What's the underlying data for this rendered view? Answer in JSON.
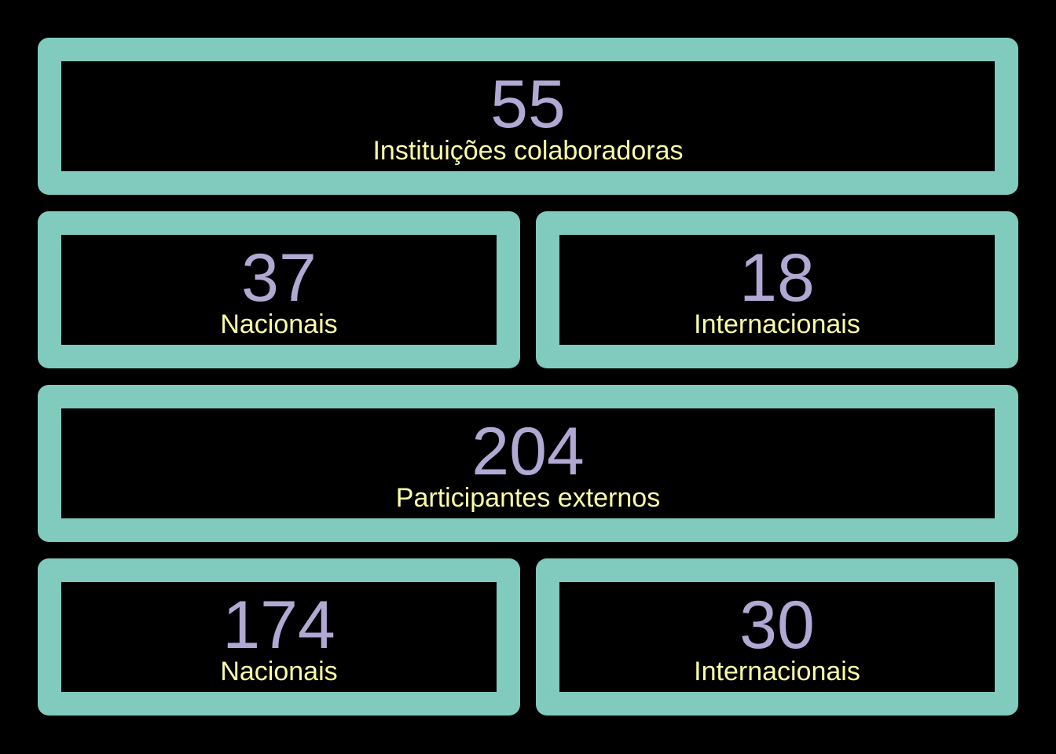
{
  "colors": {
    "background": "#000000",
    "card_border": "#80cbbd",
    "number": "#b1a8d4",
    "label": "#fcfca4"
  },
  "institutions": {
    "total": {
      "value": "55",
      "label": "Instituições colaboradoras"
    },
    "national": {
      "value": "37",
      "label": "Nacionais"
    },
    "international": {
      "value": "18",
      "label": "Internacionais"
    }
  },
  "participants": {
    "total": {
      "value": "204",
      "label": "Participantes externos"
    },
    "national": {
      "value": "174",
      "label": "Nacionais"
    },
    "international": {
      "value": "30",
      "label": "Internacionais"
    }
  }
}
